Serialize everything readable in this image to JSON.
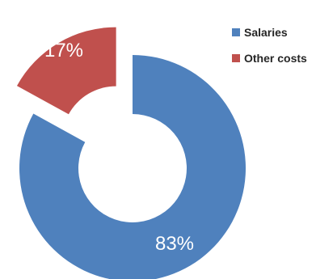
{
  "chart_data": {
    "type": "pie",
    "variant": "donut",
    "exploded_slice": "Other costs",
    "categories": [
      "Salaries",
      "Other costs"
    ],
    "values": [
      83,
      17
    ],
    "labels": [
      "83%",
      "17%"
    ],
    "colors": [
      "#4F81BD",
      "#C0504D"
    ],
    "title": "",
    "legend_position": "right"
  }
}
